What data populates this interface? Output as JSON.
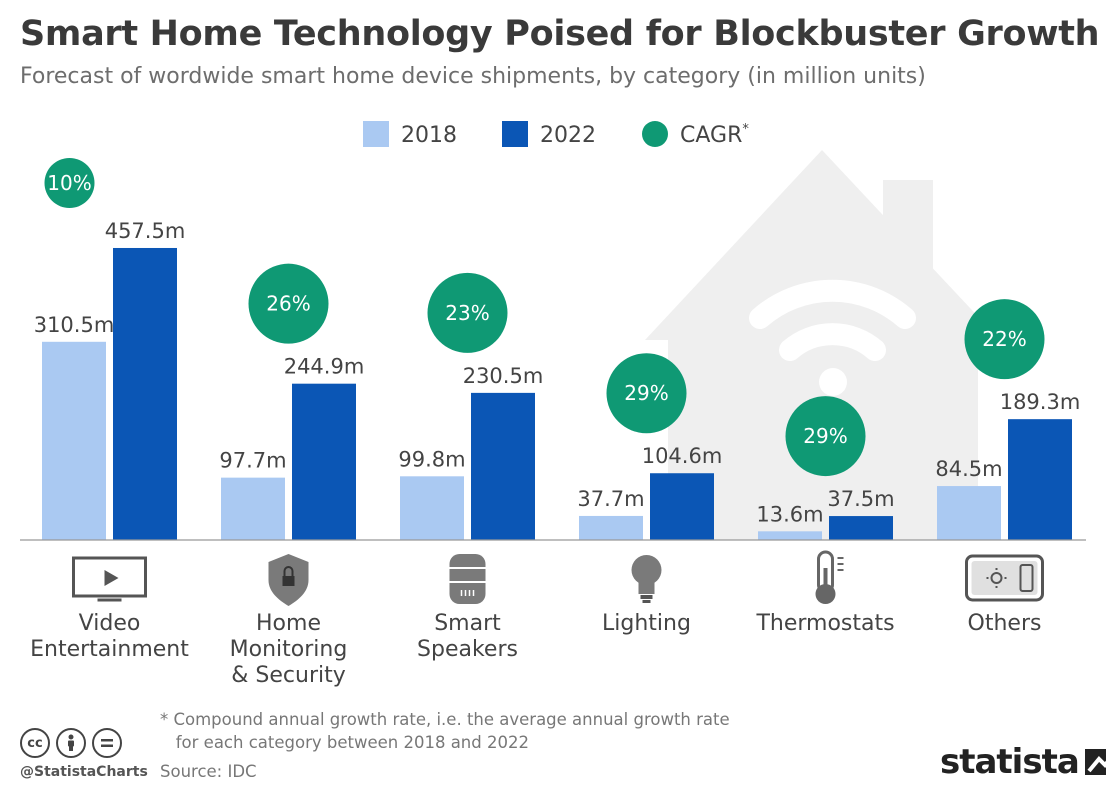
{
  "header": {
    "title": "Smart Home Technology Poised for Blockbuster Growth",
    "subtitle": "Forecast of wordwide smart home device shipments, by category (in million units)"
  },
  "legend": [
    {
      "label": "2018",
      "color": "#aac9f2",
      "shape": "square"
    },
    {
      "label": "2022",
      "color": "#0b56b5",
      "shape": "square"
    },
    {
      "label": "CAGR",
      "sup": "*",
      "color": "#0f9974",
      "shape": "circle"
    }
  ],
  "chart_data": {
    "type": "bar",
    "categories": [
      "Video Entertainment",
      "Home Monitoring & Security",
      "Smart Speakers",
      "Lighting",
      "Thermostats",
      "Others"
    ],
    "category_lines": [
      [
        "Video",
        "Entertainment"
      ],
      [
        "Home",
        "Monitoring",
        "& Security"
      ],
      [
        "Smart",
        "Speakers"
      ],
      [
        "Lighting"
      ],
      [
        "Thermostats"
      ],
      [
        "Others"
      ]
    ],
    "category_icons": [
      "tv-icon",
      "shield-lock-icon",
      "smart-speaker-icon",
      "light-bulb-icon",
      "thermometer-icon",
      "control-panel-icon"
    ],
    "series": [
      {
        "name": "2018",
        "values": [
          310.5,
          97.7,
          99.8,
          37.7,
          13.6,
          84.5
        ],
        "labels": [
          "310.5m",
          "97.7m",
          "99.8m",
          "37.7m",
          "13.6m",
          "84.5m"
        ],
        "color": "#aac9f2"
      },
      {
        "name": "2022",
        "values": [
          457.5,
          244.9,
          230.5,
          104.6,
          37.5,
          189.3
        ],
        "labels": [
          "457.5m",
          "244.9m",
          "230.5m",
          "104.6m",
          "37.5m",
          "189.3m"
        ],
        "color": "#0b56b5"
      }
    ],
    "cagr": [
      "10%",
      "26%",
      "23%",
      "29%",
      "29%",
      "22%"
    ],
    "cagr_color": "#0f9974",
    "ylim": [
      0,
      470
    ],
    "grid": false,
    "legend_position": "top-center"
  },
  "footer": {
    "footnote": "* Compound annual growth rate, i.e. the average annual growth rate\n   for each category between 2018 and 2022",
    "handle": "@StatistaCharts",
    "source": "Source: IDC",
    "brand": "statista"
  },
  "colors": {
    "background_house": "#efefef",
    "axis": "#999999",
    "icon": "#555555"
  }
}
